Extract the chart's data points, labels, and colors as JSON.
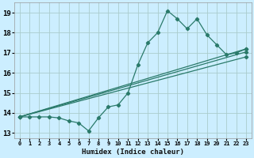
{
  "xlabel": "Humidex (Indice chaleur)",
  "bg_color": "#cceeff",
  "grid_color": "#aacccc",
  "line_color": "#2a7a6a",
  "xlim": [
    -0.5,
    23.5
  ],
  "ylim": [
    12.75,
    19.5
  ],
  "yticks": [
    13,
    14,
    15,
    16,
    17,
    18,
    19
  ],
  "xticks": [
    0,
    1,
    2,
    3,
    4,
    5,
    6,
    7,
    8,
    9,
    10,
    11,
    12,
    13,
    14,
    15,
    16,
    17,
    18,
    19,
    20,
    21,
    22,
    23
  ],
  "jagged_x": [
    0,
    1,
    2,
    3,
    4,
    5,
    6,
    7,
    8,
    9,
    10,
    11,
    12,
    13,
    14,
    15,
    16,
    17,
    18,
    19,
    20,
    21,
    22,
    23
  ],
  "jagged_y": [
    13.8,
    13.8,
    13.8,
    13.8,
    13.75,
    13.6,
    13.5,
    13.1,
    13.75,
    14.3,
    14.4,
    15.0,
    16.4,
    17.5,
    18.0,
    19.1,
    18.7,
    18.2,
    18.7,
    17.9,
    17.4,
    16.9,
    17.0,
    17.2
  ],
  "line2_x": [
    0,
    23
  ],
  "line2_y": [
    13.8,
    17.2
  ],
  "line3_x": [
    0,
    23
  ],
  "line3_y": [
    13.8,
    17.05
  ],
  "line4_x": [
    0,
    23
  ],
  "line4_y": [
    13.8,
    16.8
  ]
}
